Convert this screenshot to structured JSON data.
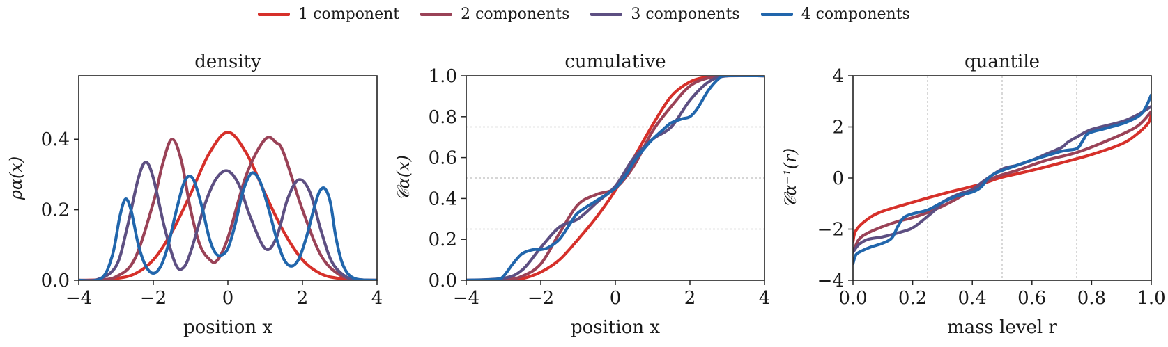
{
  "legend": [
    {
      "name": "1 component",
      "color": "#d6302a"
    },
    {
      "name": "2 components",
      "color": "#9a4257"
    },
    {
      "name": "3 components",
      "color": "#5d4f82"
    },
    {
      "name": "4 components",
      "color": "#2166ac"
    }
  ],
  "chart_data": [
    {
      "type": "line",
      "title": "density",
      "xlabel": "position x",
      "ylabel": "ρα(x)",
      "xlim": [
        -4,
        4
      ],
      "ylim": [
        0,
        0.58
      ],
      "xticks": [
        -4,
        -2,
        0,
        2,
        4
      ],
      "xtick_labels": [
        "−4",
        "−2",
        "0",
        "2",
        "4"
      ],
      "yticks": [
        0,
        0.2,
        0.4
      ],
      "ytick_labels": [
        "0.0",
        "0.2",
        "0.4"
      ],
      "guides": [],
      "guide_axis": "y",
      "series": [
        {
          "name": "1 component",
          "color": "#d6302a",
          "x": [
            -4,
            -3.5,
            -3,
            -2.5,
            -2,
            -1.5,
            -1,
            -0.5,
            0,
            0.5,
            1,
            1.5,
            2,
            2.5,
            3,
            3.5,
            4
          ],
          "y": [
            0,
            0.001,
            0.005,
            0.018,
            0.058,
            0.137,
            0.245,
            0.36,
            0.42,
            0.36,
            0.245,
            0.137,
            0.058,
            0.018,
            0.005,
            0.001,
            0
          ]
        },
        {
          "name": "2 components",
          "color": "#9a4257",
          "x": [
            -4,
            -3.5,
            -3,
            -2.5,
            -2,
            -1.75,
            -1.5,
            -1.25,
            -1,
            -0.75,
            -0.5,
            -0.3,
            0,
            0.5,
            1,
            1.3,
            1.5,
            2,
            2.5,
            3,
            3.5,
            4
          ],
          "y": [
            0,
            0.001,
            0.01,
            0.06,
            0.22,
            0.33,
            0.4,
            0.34,
            0.2,
            0.1,
            0.06,
            0.055,
            0.12,
            0.3,
            0.4,
            0.39,
            0.36,
            0.2,
            0.07,
            0.015,
            0.002,
            0
          ]
        },
        {
          "name": "3 components",
          "color": "#5d4f82",
          "x": [
            -4,
            -3.5,
            -3,
            -2.7,
            -2.4,
            -2.2,
            -2,
            -1.7,
            -1.4,
            -1.2,
            -1,
            -0.6,
            -0.3,
            0,
            0.3,
            0.6,
            1,
            1.3,
            1.6,
            1.9,
            2.2,
            2.5,
            2.8,
            3.2,
            3.6,
            4
          ],
          "y": [
            0,
            0.002,
            0.04,
            0.15,
            0.29,
            0.335,
            0.29,
            0.15,
            0.045,
            0.035,
            0.08,
            0.22,
            0.29,
            0.31,
            0.27,
            0.18,
            0.09,
            0.12,
            0.23,
            0.285,
            0.25,
            0.14,
            0.05,
            0.008,
            0.001,
            0
          ]
        },
        {
          "name": "4 components",
          "color": "#2166ac",
          "x": [
            -4,
            -3.4,
            -3.1,
            -2.9,
            -2.75,
            -2.6,
            -2.4,
            -2.2,
            -2,
            -1.8,
            -1.6,
            -1.4,
            -1.2,
            -1.05,
            -0.9,
            -0.7,
            -0.5,
            -0.35,
            -0.2,
            0,
            0.2,
            0.4,
            0.6,
            0.75,
            0.9,
            1.1,
            1.3,
            1.5,
            1.7,
            1.9,
            2.1,
            2.3,
            2.45,
            2.6,
            2.75,
            2.9,
            3.1,
            3.4,
            4
          ],
          "y": [
            0,
            0.005,
            0.07,
            0.18,
            0.23,
            0.2,
            0.1,
            0.04,
            0.02,
            0.04,
            0.1,
            0.19,
            0.27,
            0.295,
            0.28,
            0.21,
            0.12,
            0.08,
            0.07,
            0.09,
            0.16,
            0.25,
            0.3,
            0.3,
            0.27,
            0.2,
            0.12,
            0.06,
            0.04,
            0.06,
            0.12,
            0.2,
            0.25,
            0.26,
            0.22,
            0.12,
            0.04,
            0.005,
            0
          ]
        }
      ]
    },
    {
      "type": "line",
      "title": "cumulative",
      "xlabel": "position x",
      "ylabel": "𝒞α(x)",
      "xlim": [
        -4,
        4
      ],
      "ylim": [
        0,
        1
      ],
      "xticks": [
        -4,
        -2,
        0,
        2,
        4
      ],
      "xtick_labels": [
        "−4",
        "−2",
        "0",
        "2",
        "4"
      ],
      "yticks": [
        0,
        0.2,
        0.4,
        0.6,
        0.8,
        1.0
      ],
      "ytick_labels": [
        "0.0",
        "0.2",
        "0.4",
        "0.6",
        "0.8",
        "1.0"
      ],
      "guides": [
        0.25,
        0.5,
        0.75
      ],
      "guide_axis": "y",
      "series": [
        {
          "name": "1 component",
          "color": "#d6302a",
          "x": [
            -4,
            -3,
            -2.5,
            -2,
            -1.5,
            -1,
            -0.5,
            0,
            0.5,
            1,
            1.5,
            2,
            2.5,
            3,
            4
          ],
          "y": [
            0,
            0.001,
            0.008,
            0.04,
            0.1,
            0.2,
            0.31,
            0.44,
            0.6,
            0.76,
            0.9,
            0.97,
            0.995,
            1,
            1
          ]
        },
        {
          "name": "2 components",
          "color": "#9a4257",
          "x": [
            -4,
            -3,
            -2.5,
            -2,
            -1.5,
            -1,
            -0.5,
            0,
            0.5,
            1,
            1.5,
            2,
            2.5,
            3,
            4
          ],
          "y": [
            0,
            0.002,
            0.02,
            0.08,
            0.23,
            0.37,
            0.42,
            0.45,
            0.56,
            0.73,
            0.85,
            0.95,
            0.99,
            1,
            1
          ]
        },
        {
          "name": "3 components",
          "color": "#5d4f82",
          "x": [
            -4,
            -3,
            -2.5,
            -2,
            -1.5,
            -1,
            -0.5,
            0,
            0.5,
            1,
            1.5,
            2,
            2.5,
            3,
            4
          ],
          "y": [
            0,
            0.01,
            0.05,
            0.16,
            0.26,
            0.3,
            0.38,
            0.46,
            0.6,
            0.69,
            0.75,
            0.88,
            0.97,
            1,
            1
          ]
        },
        {
          "name": "4 components",
          "color": "#2166ac",
          "x": [
            -4,
            -3.2,
            -3,
            -2.75,
            -2.5,
            -2.2,
            -2,
            -1.8,
            -1.5,
            -1.2,
            -1,
            -0.5,
            0,
            0.3,
            0.5,
            0.8,
            1,
            1.3,
            1.5,
            1.8,
            2,
            2.2,
            2.5,
            2.8,
            3,
            4
          ],
          "y": [
            0,
            0.005,
            0.02,
            0.08,
            0.13,
            0.15,
            0.15,
            0.16,
            0.2,
            0.28,
            0.33,
            0.39,
            0.45,
            0.52,
            0.58,
            0.65,
            0.69,
            0.74,
            0.77,
            0.79,
            0.8,
            0.84,
            0.93,
            0.99,
            1,
            1
          ]
        }
      ]
    },
    {
      "type": "line",
      "title": "quantile",
      "xlabel": "mass level r",
      "ylabel": "𝒞α⁻¹(r)",
      "xlim": [
        0,
        1
      ],
      "ylim": [
        -4,
        4
      ],
      "xticks": [
        0,
        0.2,
        0.4,
        0.6,
        0.8,
        1.0
      ],
      "xtick_labels": [
        "0.0",
        "0.2",
        "0.4",
        "0.6",
        "0.8",
        "1.0"
      ],
      "yticks": [
        -4,
        -2,
        0,
        2,
        4
      ],
      "ytick_labels": [
        "−4",
        "−2",
        "0",
        "2",
        "4"
      ],
      "guides": [
        0.25,
        0.5,
        0.75
      ],
      "guide_axis": "x",
      "series": [
        {
          "name": "1 component",
          "color": "#d6302a",
          "x": [
            0,
            0.01,
            0.05,
            0.1,
            0.2,
            0.3,
            0.4,
            0.44,
            0.5,
            0.6,
            0.7,
            0.8,
            0.9,
            0.95,
            0.99,
            1
          ],
          "y": [
            -2.5,
            -2.05,
            -1.6,
            -1.3,
            -0.95,
            -0.62,
            -0.33,
            -0.2,
            0.03,
            0.3,
            0.6,
            0.92,
            1.33,
            1.7,
            2.15,
            2.5
          ]
        },
        {
          "name": "2 components",
          "color": "#9a4257",
          "x": [
            0,
            0.02,
            0.05,
            0.1,
            0.15,
            0.2,
            0.25,
            0.3,
            0.35,
            0.4,
            0.44,
            0.48,
            0.55,
            0.65,
            0.75,
            0.85,
            0.95,
            1
          ],
          "y": [
            -2.9,
            -2.4,
            -2.15,
            -1.9,
            -1.7,
            -1.55,
            -1.35,
            -1.1,
            -0.8,
            -0.45,
            -0.2,
            0.05,
            0.3,
            0.7,
            1.0,
            1.45,
            2.0,
            2.6
          ]
        },
        {
          "name": "3 components",
          "color": "#5d4f82",
          "x": [
            0,
            0.02,
            0.05,
            0.1,
            0.15,
            0.2,
            0.25,
            0.28,
            0.3,
            0.35,
            0.4,
            0.44,
            0.5,
            0.55,
            0.6,
            0.65,
            0.7,
            0.72,
            0.75,
            0.8,
            0.9,
            0.95,
            1
          ],
          "y": [
            -2.9,
            -2.6,
            -2.4,
            -2.3,
            -2.15,
            -1.95,
            -1.5,
            -1.2,
            -0.95,
            -0.65,
            -0.45,
            -0.1,
            0.35,
            0.5,
            0.7,
            0.95,
            1.2,
            1.4,
            1.6,
            1.9,
            2.2,
            2.45,
            2.8
          ]
        },
        {
          "name": "4 components",
          "color": "#2166ac",
          "x": [
            0,
            0.01,
            0.03,
            0.06,
            0.1,
            0.13,
            0.15,
            0.17,
            0.2,
            0.25,
            0.3,
            0.35,
            0.4,
            0.43,
            0.45,
            0.48,
            0.55,
            0.6,
            0.7,
            0.75,
            0.77,
            0.79,
            0.85,
            0.92,
            0.97,
            1
          ],
          "y": [
            -3.35,
            -3.0,
            -2.85,
            -2.7,
            -2.55,
            -2.35,
            -1.9,
            -1.55,
            -1.4,
            -1.25,
            -0.95,
            -0.7,
            -0.55,
            -0.35,
            -0.05,
            0.2,
            0.5,
            0.7,
            1.05,
            1.15,
            1.45,
            1.75,
            1.95,
            2.2,
            2.55,
            3.25
          ]
        }
      ]
    }
  ]
}
